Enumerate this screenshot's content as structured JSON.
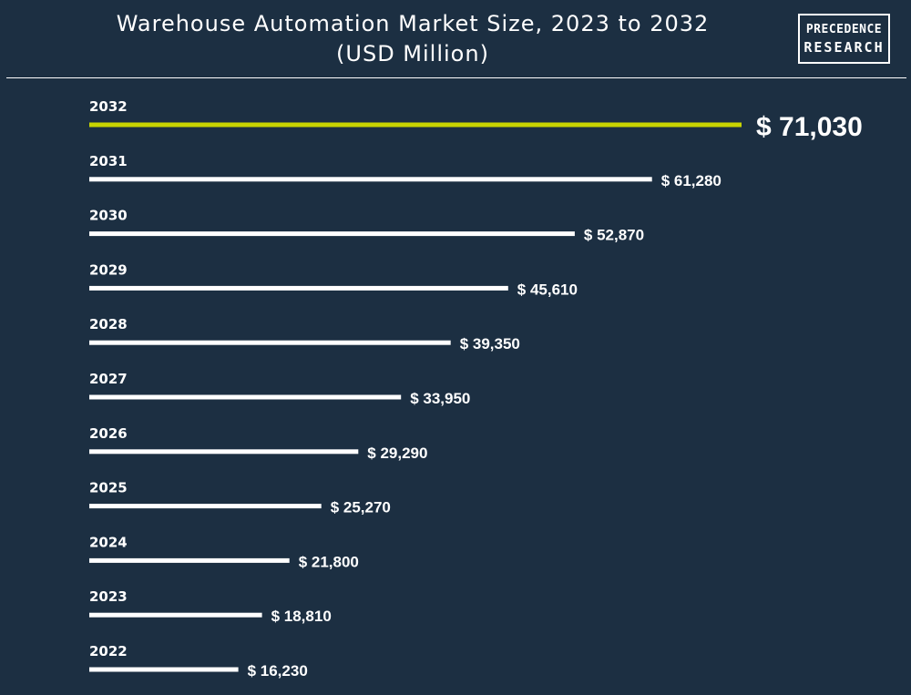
{
  "header": {
    "title_line1": "Warehouse Automation Market Size, 2023 to 2032",
    "title_line2": "(USD Million)"
  },
  "logo": {
    "line1": "PRECEDENCE",
    "line2": "RESEARCH"
  },
  "colors": {
    "background": "#1c2f42",
    "bar": "#ffffff",
    "highlight": "#c8d400",
    "text": "#ffffff"
  },
  "chart_data": {
    "type": "bar",
    "orientation": "horizontal",
    "title": "Warehouse Automation Market Size, 2023 to 2032 (USD Million)",
    "categories": [
      "2032",
      "2031",
      "2030",
      "2029",
      "2028",
      "2027",
      "2026",
      "2025",
      "2024",
      "2023",
      "2022"
    ],
    "values": [
      71030,
      61280,
      52870,
      45610,
      39350,
      33950,
      29290,
      25270,
      21800,
      18810,
      16230
    ],
    "value_labels": [
      "$ 71,030",
      "$ 61,280",
      "$ 52,870",
      "$ 45,610",
      "$ 39,350",
      "$ 33,950",
      "$ 29,290",
      "$ 25,270",
      "$ 21,800",
      "$ 18,810",
      "$ 16,230"
    ],
    "highlight_category": "2032",
    "xlabel": "",
    "ylabel": "",
    "grid": false,
    "legend": "none"
  }
}
